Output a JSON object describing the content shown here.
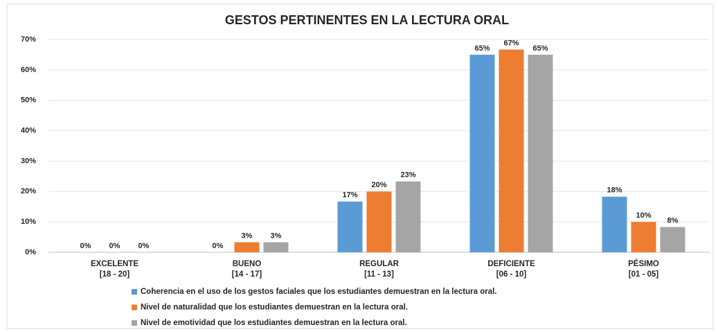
{
  "chart_data": {
    "type": "bar",
    "title": "GESTOS PERTINENTES  EN LA LECTURA ORAL",
    "categories": [
      [
        "EXCELENTE",
        "[18 - 20]"
      ],
      [
        "BUENO",
        "[14 - 17]"
      ],
      [
        "REGULAR",
        "[11 - 13]"
      ],
      [
        "DEFICIENTE",
        "[06 - 10]"
      ],
      [
        "PÉSIMO",
        "[01 - 05]"
      ]
    ],
    "series": [
      {
        "name": "Coherencia en el uso de los gestos faciales que los estudiantes demuestran en la lectura oral.",
        "color": "#5b9bd5",
        "values": [
          0,
          0,
          16.7,
          65,
          18.3
        ],
        "value_labels": [
          "0%",
          "0%",
          "17%",
          "65%",
          "18%"
        ]
      },
      {
        "name": "Nivel de naturalidad que los estudiantes demuestran en la lectura oral.",
        "color": "#ed7d31",
        "values": [
          0,
          3.3,
          20,
          66.7,
          10
        ],
        "value_labels": [
          "0%",
          "3%",
          "20%",
          "67%",
          "10%"
        ]
      },
      {
        "name": "Nivel de emotividad que los estudiantes demuestran en la lectura oral.",
        "color": "#a5a5a5",
        "values": [
          0,
          3.3,
          23.3,
          65,
          8.3
        ],
        "value_labels": [
          "0%",
          "3%",
          "23%",
          "65%",
          "8%"
        ]
      }
    ],
    "ylim": [
      0,
      70
    ],
    "yticks": [
      {
        "value": 0,
        "label": "0%"
      },
      {
        "value": 10,
        "label": "10%"
      },
      {
        "value": 20,
        "label": "20%"
      },
      {
        "value": 30,
        "label": "30%"
      },
      {
        "value": 40,
        "label": "40%"
      },
      {
        "value": 50,
        "label": "50%"
      },
      {
        "value": 60,
        "label": "60%"
      },
      {
        "value": 70,
        "label": "70%"
      }
    ],
    "grid": true,
    "legend": "bottom"
  }
}
